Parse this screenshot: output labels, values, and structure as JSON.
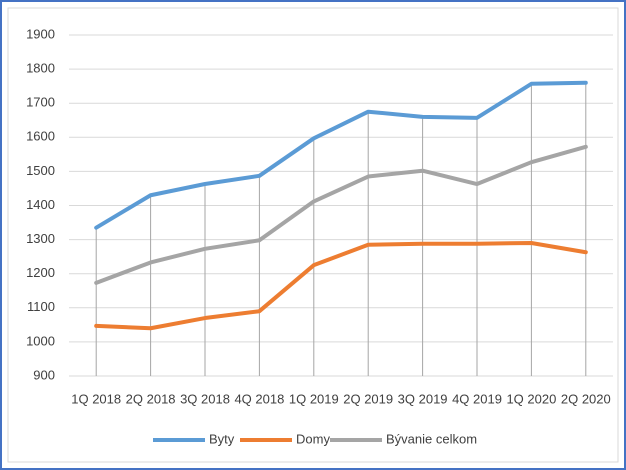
{
  "chart_data": {
    "type": "line",
    "categories": [
      "1Q 2018",
      "2Q 2018",
      "3Q 2018",
      "4Q 2018",
      "1Q 2019",
      "2Q 2019",
      "3Q 2019",
      "4Q 2019",
      "1Q 2020",
      "2Q 2020"
    ],
    "series": [
      {
        "name": "Byty",
        "color": "#5b9bd5",
        "values": [
          1335,
          1430,
          1463,
          1487,
          1597,
          1675,
          1660,
          1657,
          1757,
          1760
        ]
      },
      {
        "name": "Domy",
        "color": "#ed7d31",
        "values": [
          1047,
          1040,
          1070,
          1090,
          1225,
          1285,
          1288,
          1288,
          1290,
          1263
        ]
      },
      {
        "name": "Bývanie celkom",
        "color": "#a5a5a5",
        "values": [
          1173,
          1233,
          1273,
          1298,
          1412,
          1485,
          1502,
          1463,
          1527,
          1572
        ]
      }
    ],
    "ylim": [
      900,
      1900
    ],
    "yticks": [
      900,
      1000,
      1100,
      1200,
      1300,
      1400,
      1500,
      1600,
      1700,
      1800,
      1900
    ],
    "grid": true,
    "legend": "bottom"
  }
}
